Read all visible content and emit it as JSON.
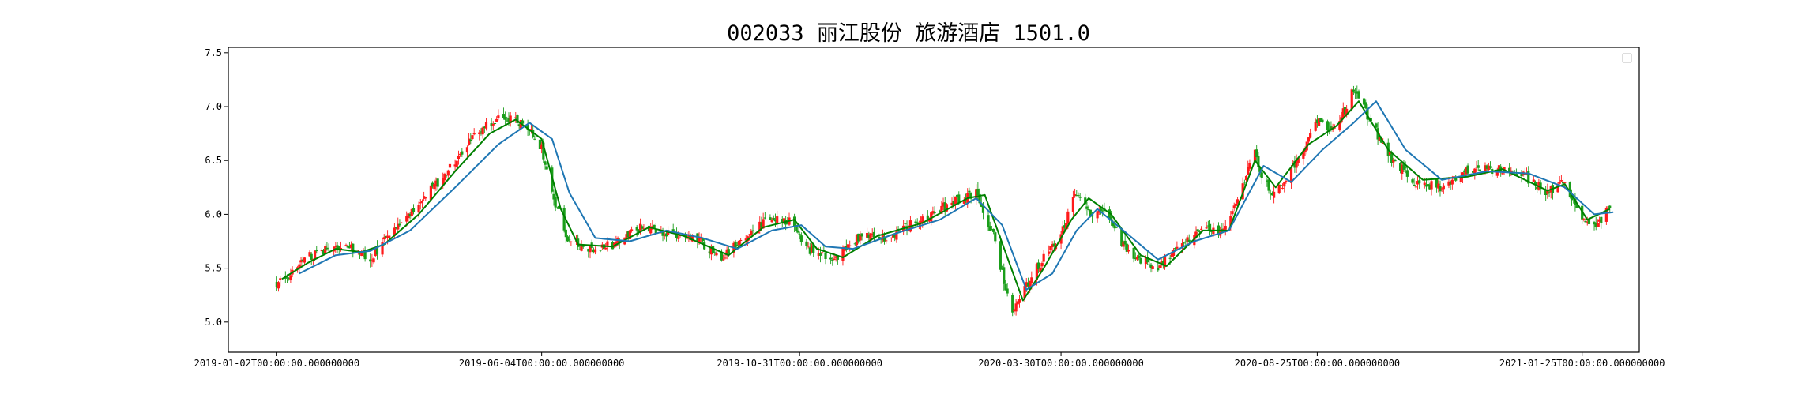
{
  "chart_data": {
    "type": "candlestick",
    "title": "002033 丽江股份 旅游酒店 1501.0",
    "xlabel": "",
    "ylabel": "",
    "ylim": [
      4.72,
      7.55
    ],
    "yticks": [
      5.0,
      5.5,
      6.0,
      6.5,
      7.0,
      7.5
    ],
    "ytick_labels": [
      "5.0",
      "5.5",
      "6.0",
      "6.5",
      "7.0",
      "7.5"
    ],
    "xlim": [
      "2018-12-05",
      "2021-02-27"
    ],
    "xticks": [
      "2019-01-02",
      "2019-06-04",
      "2019-10-31",
      "2020-03-30",
      "2020-08-25",
      "2021-01-25"
    ],
    "xtick_labels": [
      "2019-01-02T00:00:00.000000000",
      "2019-06-04T00:00:00.000000000",
      "2019-10-31T00:00:00.000000000",
      "2020-03-30T00:00:00.000000000",
      "2020-08-25T00:00:00.000000000",
      "2021-01-25T00:00:00.000000000"
    ],
    "grid": false,
    "legend": "top-right",
    "colors": {
      "up": "#ff1a1a",
      "down": "#1a9e1a",
      "short_ma": "#008000",
      "long_ma": "#1f77b4"
    },
    "close_trend": [
      [
        "2019-01-02",
        5.35
      ],
      [
        "2019-01-10",
        5.45
      ],
      [
        "2019-01-20",
        5.6
      ],
      [
        "2019-02-01",
        5.68
      ],
      [
        "2019-02-15",
        5.68
      ],
      [
        "2019-02-25",
        5.58
      ],
      [
        "2019-03-05",
        5.75
      ],
      [
        "2019-03-15",
        5.92
      ],
      [
        "2019-03-25",
        6.1
      ],
      [
        "2019-04-05",
        6.3
      ],
      [
        "2019-04-15",
        6.5
      ],
      [
        "2019-04-25",
        6.7
      ],
      [
        "2019-05-05",
        6.85
      ],
      [
        "2019-05-12",
        6.92
      ],
      [
        "2019-05-20",
        6.88
      ],
      [
        "2019-05-27",
        6.8
      ],
      [
        "2019-06-04",
        6.62
      ],
      [
        "2019-06-12",
        6.1
      ],
      [
        "2019-06-20",
        5.72
      ],
      [
        "2019-07-01",
        5.68
      ],
      [
        "2019-07-15",
        5.72
      ],
      [
        "2019-08-01",
        5.88
      ],
      [
        "2019-08-15",
        5.82
      ],
      [
        "2019-09-01",
        5.78
      ],
      [
        "2019-09-15",
        5.6
      ],
      [
        "2019-09-25",
        5.72
      ],
      [
        "2019-10-10",
        5.92
      ],
      [
        "2019-10-25",
        5.95
      ],
      [
        "2019-11-05",
        5.68
      ],
      [
        "2019-11-20",
        5.58
      ],
      [
        "2019-12-05",
        5.8
      ],
      [
        "2019-12-20",
        5.78
      ],
      [
        "2020-01-05",
        5.92
      ],
      [
        "2020-01-20",
        6.05
      ],
      [
        "2020-02-01",
        6.15
      ],
      [
        "2020-02-10",
        6.2
      ],
      [
        "2020-02-20",
        5.8
      ],
      [
        "2020-03-01",
        5.1
      ],
      [
        "2020-03-10",
        5.35
      ],
      [
        "2020-03-20",
        5.6
      ],
      [
        "2020-03-30",
        5.82
      ],
      [
        "2020-04-08",
        6.2
      ],
      [
        "2020-04-15",
        6.0
      ],
      [
        "2020-04-25",
        6.05
      ],
      [
        "2020-05-05",
        5.7
      ],
      [
        "2020-05-15",
        5.58
      ],
      [
        "2020-05-25",
        5.52
      ],
      [
        "2020-06-10",
        5.75
      ],
      [
        "2020-06-20",
        5.9
      ],
      [
        "2020-07-01",
        5.82
      ],
      [
        "2020-07-10",
        6.15
      ],
      [
        "2020-07-20",
        6.6
      ],
      [
        "2020-07-25",
        6.3
      ],
      [
        "2020-08-01",
        6.18
      ],
      [
        "2020-08-15",
        6.55
      ],
      [
        "2020-08-25",
        6.85
      ],
      [
        "2020-09-05",
        6.8
      ],
      [
        "2020-09-15",
        7.15
      ],
      [
        "2020-09-22",
        6.95
      ],
      [
        "2020-10-05",
        6.55
      ],
      [
        "2020-10-20",
        6.3
      ],
      [
        "2020-11-05",
        6.25
      ],
      [
        "2020-11-20",
        6.4
      ],
      [
        "2020-12-05",
        6.42
      ],
      [
        "2020-12-20",
        6.38
      ],
      [
        "2021-01-05",
        6.2
      ],
      [
        "2021-01-15",
        6.3
      ],
      [
        "2021-01-25",
        5.95
      ],
      [
        "2021-02-05",
        5.92
      ],
      [
        "2021-02-10",
        6.1
      ]
    ],
    "series": [
      {
        "values": [
          [
            "2019-01-05",
            5.4
          ],
          [
            "2019-01-20",
            5.55
          ],
          [
            "2019-02-05",
            5.68
          ],
          [
            "2019-02-20",
            5.65
          ],
          [
            "2019-03-05",
            5.72
          ],
          [
            "2019-03-25",
            6.0
          ],
          [
            "2019-04-15",
            6.4
          ],
          [
            "2019-05-05",
            6.75
          ],
          [
            "2019-05-20",
            6.88
          ],
          [
            "2019-06-04",
            6.7
          ],
          [
            "2019-06-15",
            6.05
          ],
          [
            "2019-06-25",
            5.72
          ],
          [
            "2019-07-15",
            5.7
          ],
          [
            "2019-08-05",
            5.88
          ],
          [
            "2019-08-25",
            5.8
          ],
          [
            "2019-09-20",
            5.62
          ],
          [
            "2019-10-10",
            5.88
          ],
          [
            "2019-10-28",
            5.95
          ],
          [
            "2019-11-10",
            5.68
          ],
          [
            "2019-11-25",
            5.6
          ],
          [
            "2019-12-15",
            5.8
          ],
          [
            "2020-01-10",
            5.92
          ],
          [
            "2020-02-05",
            6.15
          ],
          [
            "2020-02-15",
            6.18
          ],
          [
            "2020-02-28",
            5.6
          ],
          [
            "2020-03-08",
            5.2
          ],
          [
            "2020-03-20",
            5.5
          ],
          [
            "2020-04-05",
            5.95
          ],
          [
            "2020-04-15",
            6.15
          ],
          [
            "2020-04-28",
            6.0
          ],
          [
            "2020-05-15",
            5.62
          ],
          [
            "2020-05-30",
            5.52
          ],
          [
            "2020-06-20",
            5.85
          ],
          [
            "2020-07-05",
            5.85
          ],
          [
            "2020-07-20",
            6.5
          ],
          [
            "2020-08-01",
            6.25
          ],
          [
            "2020-08-20",
            6.65
          ],
          [
            "2020-09-05",
            6.82
          ],
          [
            "2020-09-18",
            7.05
          ],
          [
            "2020-10-05",
            6.6
          ],
          [
            "2020-10-25",
            6.32
          ],
          [
            "2020-11-20",
            6.35
          ],
          [
            "2020-12-10",
            6.42
          ],
          [
            "2021-01-05",
            6.22
          ],
          [
            "2021-01-15",
            6.28
          ],
          [
            "2021-01-28",
            5.95
          ],
          [
            "2021-02-10",
            6.05
          ]
        ]
      },
      {
        "values": [
          [
            "2019-01-15",
            5.45
          ],
          [
            "2019-02-05",
            5.62
          ],
          [
            "2019-02-25",
            5.66
          ],
          [
            "2019-03-20",
            5.85
          ],
          [
            "2019-04-15",
            6.25
          ],
          [
            "2019-05-10",
            6.65
          ],
          [
            "2019-05-28",
            6.85
          ],
          [
            "2019-06-10",
            6.7
          ],
          [
            "2019-06-20",
            6.2
          ],
          [
            "2019-07-05",
            5.78
          ],
          [
            "2019-07-25",
            5.75
          ],
          [
            "2019-08-15",
            5.85
          ],
          [
            "2019-09-05",
            5.78
          ],
          [
            "2019-09-25",
            5.68
          ],
          [
            "2019-10-15",
            5.85
          ],
          [
            "2019-11-01",
            5.9
          ],
          [
            "2019-11-15",
            5.7
          ],
          [
            "2019-12-01",
            5.68
          ],
          [
            "2019-12-25",
            5.82
          ],
          [
            "2020-01-20",
            5.95
          ],
          [
            "2020-02-10",
            6.15
          ],
          [
            "2020-02-25",
            5.9
          ],
          [
            "2020-03-10",
            5.3
          ],
          [
            "2020-03-25",
            5.45
          ],
          [
            "2020-04-08",
            5.85
          ],
          [
            "2020-04-20",
            6.05
          ],
          [
            "2020-05-05",
            5.85
          ],
          [
            "2020-05-25",
            5.58
          ],
          [
            "2020-06-15",
            5.75
          ],
          [
            "2020-07-05",
            5.85
          ],
          [
            "2020-07-25",
            6.45
          ],
          [
            "2020-08-10",
            6.3
          ],
          [
            "2020-08-28",
            6.6
          ],
          [
            "2020-09-15",
            6.85
          ],
          [
            "2020-09-28",
            7.05
          ],
          [
            "2020-10-15",
            6.6
          ],
          [
            "2020-11-05",
            6.32
          ],
          [
            "2020-12-01",
            6.4
          ],
          [
            "2020-12-25",
            6.38
          ],
          [
            "2021-01-15",
            6.25
          ],
          [
            "2021-02-01",
            6.0
          ],
          [
            "2021-02-12",
            6.02
          ]
        ]
      }
    ]
  }
}
